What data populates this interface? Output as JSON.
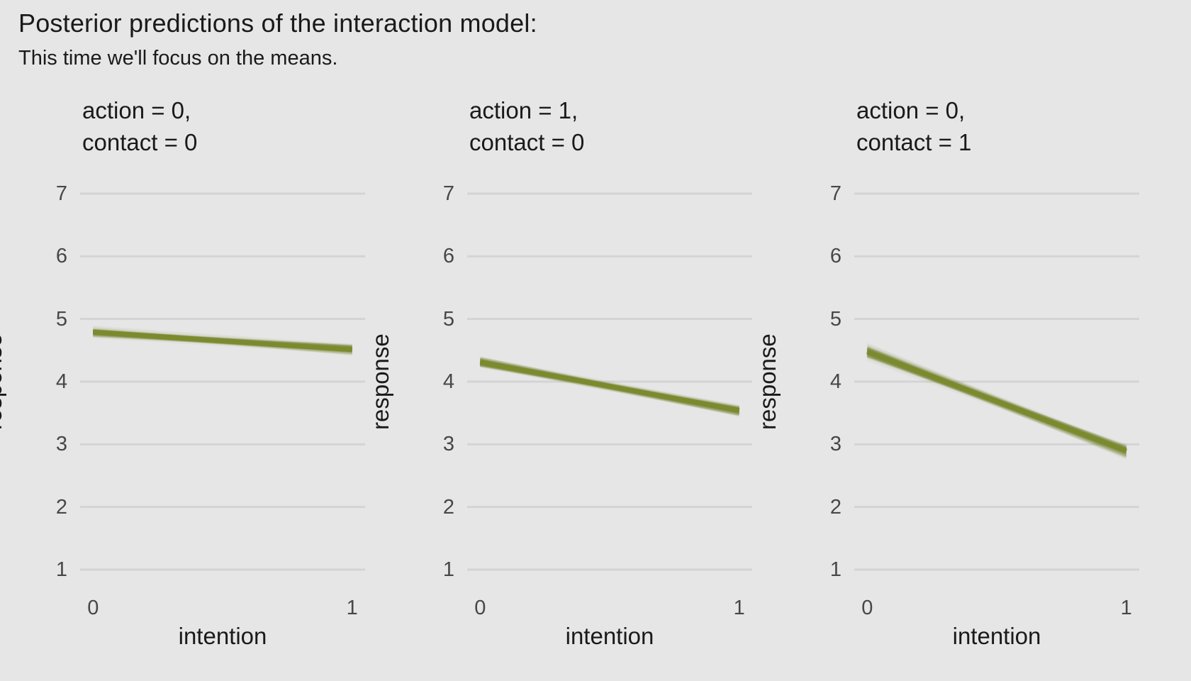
{
  "colors": {
    "background": "#E6E6E6",
    "gridline": "#D4D4D4",
    "text": "#1A1A1A",
    "tick_text": "#474747",
    "line_olive": "#7C8A2E"
  },
  "chart_data": {
    "type": "line",
    "title": "Posterior predictions of the interaction model:",
    "subtitle": "This time we'll focus on the means.",
    "xlabel": "intention",
    "ylabel": "response",
    "x_ticks": [
      "0",
      "1"
    ],
    "y_ticks": [
      1,
      2,
      3,
      4,
      5,
      6,
      7
    ],
    "ylim": [
      0.7,
      7.3
    ],
    "xlim": [
      -0.05,
      1.05
    ],
    "grid": "horizontal-only",
    "legend": "none",
    "style": {
      "n_posterior_draws": 100,
      "draw_opacity": 0.06,
      "draw_width": 4,
      "mean_width": 7
    },
    "panels": [
      {
        "facet_line1": "action = 0,",
        "facet_line2": "contact = 0",
        "x": [
          0,
          1
        ],
        "mean": [
          4.79,
          4.51
        ],
        "spread": [
          0.05,
          0.055
        ]
      },
      {
        "facet_line1": "action = 1,",
        "facet_line2": "contact = 0",
        "x": [
          0,
          1
        ],
        "mean": [
          4.31,
          3.54
        ],
        "spread": [
          0.055,
          0.06
        ]
      },
      {
        "facet_line1": "action = 0,",
        "facet_line2": "contact = 1",
        "x": [
          0,
          1
        ],
        "mean": [
          4.48,
          2.89
        ],
        "spread": [
          0.08,
          0.08
        ]
      }
    ]
  }
}
